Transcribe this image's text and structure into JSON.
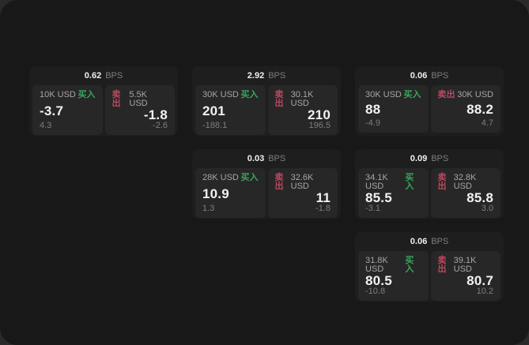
{
  "unit_label": "BPS",
  "colors": {
    "buy_green": "#3aa55c",
    "sell_red": "#bb4860",
    "panel_bg": "#181818",
    "card_bg": "#1e1e1e",
    "subpanel_bg": "#272727"
  },
  "cards": [
    {
      "col": 1,
      "row": 1,
      "bps": "0.62",
      "buy": {
        "amount": "10K USD",
        "label": "买入",
        "value": "-3.7",
        "sub": "4.3"
      },
      "sell": {
        "label": "卖出",
        "amount": "5.5K USD",
        "value": "-1.8",
        "sub": "-2.6"
      }
    },
    {
      "col": 2,
      "row": 1,
      "bps": "2.92",
      "buy": {
        "amount": "30K USD",
        "label": "买入",
        "value": "201",
        "sub": "-188.1"
      },
      "sell": {
        "label": "卖出",
        "amount": "30.1K USD",
        "value": "210",
        "sub": "196.5"
      }
    },
    {
      "col": 3,
      "row": 1,
      "bps": "0.06",
      "buy": {
        "amount": "30K USD",
        "label": "买入",
        "value": "88",
        "sub": "-4.9"
      },
      "sell": {
        "label": "卖出",
        "amount": "30K USD",
        "value": "88.2",
        "sub": "4.7"
      }
    },
    {
      "col": 2,
      "row": 2,
      "bps": "0.03",
      "buy": {
        "amount": "28K USD",
        "label": "买入",
        "value": "10.9",
        "sub": "1.3"
      },
      "sell": {
        "label": "卖出",
        "amount": "32.6K USD",
        "value": "11",
        "sub": "-1.8"
      }
    },
    {
      "col": 3,
      "row": 2,
      "bps": "0.09",
      "buy": {
        "amount": "34.1K USD",
        "label": "买入",
        "value": "85.5",
        "sub": "-3.1"
      },
      "sell": {
        "label": "卖出",
        "amount": "32.8K USD",
        "value": "85.8",
        "sub": "3.0"
      }
    },
    {
      "col": 3,
      "row": 3,
      "bps": "0.06",
      "buy": {
        "amount": "31.8K USD",
        "label": "买入",
        "value": "80.5",
        "sub": "-10.8"
      },
      "sell": {
        "label": "卖出",
        "amount": "39.1K USD",
        "value": "80.7",
        "sub": "10.2"
      }
    }
  ]
}
